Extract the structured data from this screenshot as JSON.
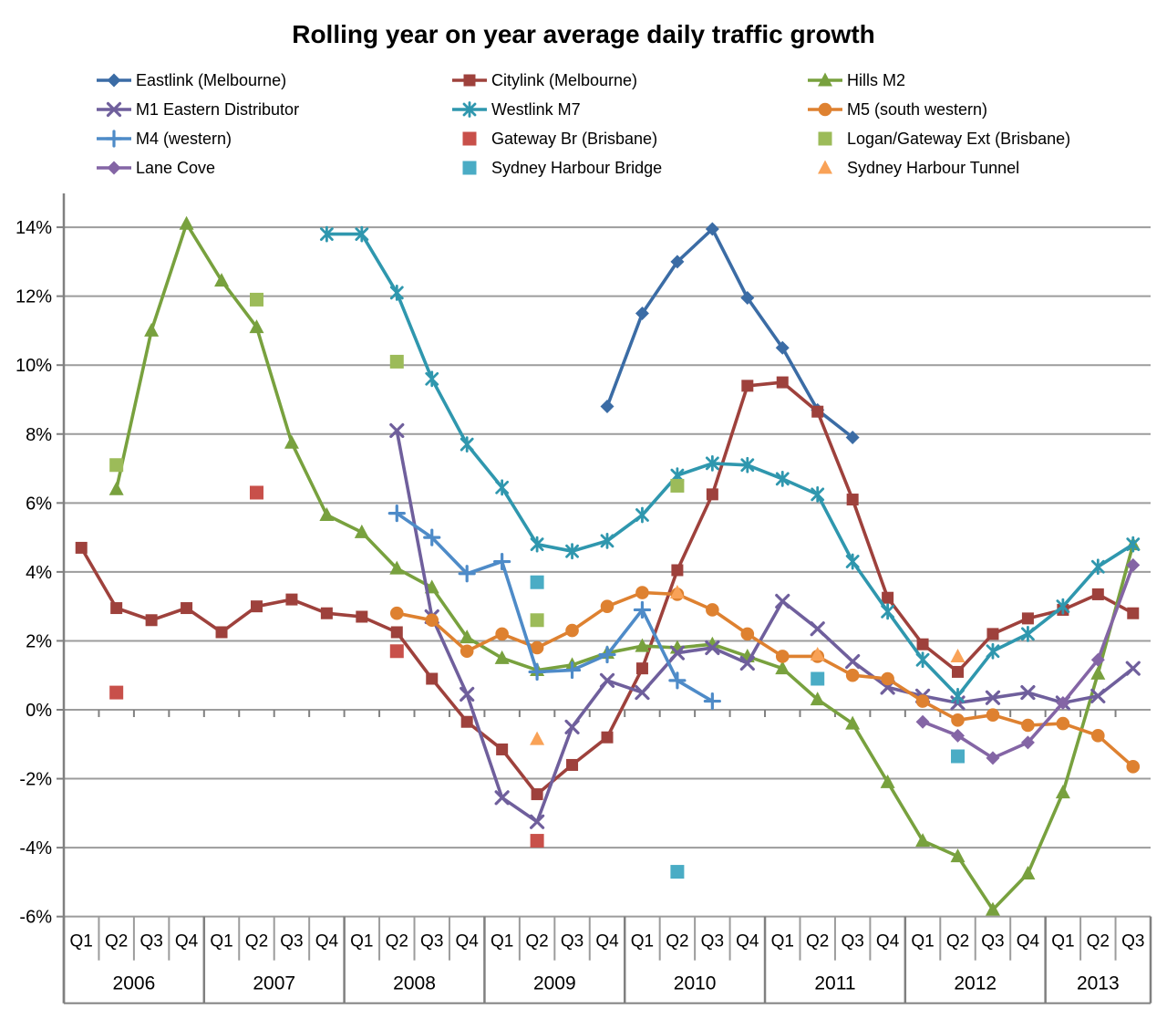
{
  "title": "Rolling year on year average daily traffic growth",
  "chart_data": {
    "type": "line",
    "title": "Rolling year on year average daily traffic growth",
    "legend_position": "top",
    "y_axis": {
      "min": -6,
      "max": 14,
      "tick_step": 2,
      "tick_suffix": "%",
      "gridlines": true
    },
    "x_axis": {
      "quarter_labels": [
        "Q1",
        "Q2",
        "Q3",
        "Q4",
        "Q1",
        "Q2",
        "Q3",
        "Q4",
        "Q1",
        "Q2",
        "Q3",
        "Q4",
        "Q1",
        "Q2",
        "Q3",
        "Q4",
        "Q1",
        "Q2",
        "Q3",
        "Q4",
        "Q1",
        "Q2",
        "Q3",
        "Q4",
        "Q1",
        "Q2",
        "Q3",
        "Q4",
        "Q1",
        "Q2",
        "Q3"
      ],
      "year_groups": [
        {
          "label": "2006",
          "quarters": 4
        },
        {
          "label": "2007",
          "quarters": 4
        },
        {
          "label": "2008",
          "quarters": 4
        },
        {
          "label": "2009",
          "quarters": 4
        },
        {
          "label": "2010",
          "quarters": 4
        },
        {
          "label": "2011",
          "quarters": 4
        },
        {
          "label": "2012",
          "quarters": 4
        },
        {
          "label": "2013",
          "quarters": 3
        }
      ]
    },
    "series": [
      {
        "name": "Eastlink (Melbourne)",
        "type": "line",
        "marker": "diamond",
        "color": "#3B6CA5",
        "values": [
          null,
          null,
          null,
          null,
          null,
          null,
          null,
          null,
          null,
          null,
          null,
          null,
          null,
          null,
          null,
          8.8,
          11.5,
          13.0,
          13.95,
          11.95,
          10.5,
          8.7,
          7.9,
          null,
          null,
          null,
          null,
          null,
          null,
          null,
          null
        ]
      },
      {
        "name": "Citylink (Melbourne)",
        "type": "line",
        "marker": "square",
        "color": "#9E413C",
        "values": [
          4.7,
          2.95,
          2.6,
          2.95,
          2.25,
          3.0,
          3.2,
          2.8,
          2.7,
          2.25,
          0.9,
          -0.35,
          -1.15,
          -2.45,
          -1.6,
          -0.8,
          1.2,
          4.05,
          6.25,
          9.4,
          9.5,
          8.65,
          6.1,
          3.25,
          1.9,
          1.1,
          2.2,
          2.65,
          2.9,
          3.35,
          2.8
        ]
      },
      {
        "name": "Hills M2",
        "type": "line",
        "marker": "triangle",
        "color": "#78A13E",
        "values": [
          null,
          6.4,
          11.0,
          14.1,
          12.45,
          11.1,
          7.75,
          5.65,
          5.15,
          4.1,
          3.55,
          2.1,
          1.5,
          1.15,
          1.3,
          1.65,
          1.85,
          1.8,
          1.9,
          1.55,
          1.2,
          0.3,
          -0.4,
          -2.1,
          -3.8,
          -4.25,
          -5.8,
          -4.75,
          -2.4,
          1.05,
          4.8
        ]
      },
      {
        "name": "M1 Eastern Distributor",
        "type": "line",
        "marker": "x",
        "color": "#6F5F9C",
        "values": [
          null,
          null,
          null,
          null,
          null,
          null,
          null,
          null,
          null,
          8.1,
          2.7,
          0.45,
          -2.55,
          -3.25,
          -0.5,
          0.85,
          0.5,
          1.65,
          1.8,
          1.35,
          3.15,
          2.35,
          1.4,
          0.65,
          0.4,
          0.2,
          0.35,
          0.5,
          0.2,
          0.4,
          1.2
        ]
      },
      {
        "name": "Westlink M7",
        "type": "line",
        "marker": "asterisk",
        "color": "#2F97AE",
        "values": [
          null,
          null,
          null,
          null,
          null,
          null,
          null,
          13.8,
          13.8,
          12.1,
          9.6,
          7.7,
          6.45,
          4.8,
          4.6,
          4.9,
          5.65,
          6.8,
          7.15,
          7.1,
          6.7,
          6.25,
          4.3,
          2.85,
          1.45,
          0.4,
          1.7,
          2.2,
          3.0,
          4.15,
          4.8
        ]
      },
      {
        "name": "M5 (south western)",
        "type": "line",
        "marker": "circle",
        "color": "#DE8130",
        "values": [
          null,
          null,
          null,
          null,
          null,
          null,
          null,
          null,
          null,
          2.8,
          2.6,
          1.7,
          2.2,
          1.8,
          2.3,
          3.0,
          3.4,
          3.35,
          2.9,
          2.2,
          1.55,
          1.55,
          1.0,
          0.9,
          0.25,
          -0.3,
          -0.15,
          -0.45,
          -0.4,
          -0.75,
          -1.65
        ]
      },
      {
        "name": "M4 (western)",
        "type": "line",
        "marker": "plus",
        "color": "#4E8BC8",
        "values": [
          null,
          null,
          null,
          null,
          null,
          null,
          null,
          null,
          null,
          5.7,
          5.0,
          3.95,
          4.3,
          1.1,
          1.15,
          1.6,
          2.9,
          0.85,
          0.25,
          null,
          null,
          null,
          null,
          null,
          null,
          null,
          null,
          null,
          null,
          null,
          null
        ]
      },
      {
        "name": "Gateway Br (Brisbane)",
        "type": "scatter",
        "marker": "square",
        "color": "#C8504A",
        "values": [
          null,
          0.5,
          null,
          null,
          null,
          6.3,
          null,
          null,
          null,
          1.7,
          null,
          null,
          null,
          -3.8,
          null,
          null,
          null,
          null,
          null,
          null,
          null,
          null,
          null,
          null,
          null,
          null,
          null,
          null,
          null,
          null,
          null
        ]
      },
      {
        "name": "Logan/Gateway Ext (Brisbane)",
        "type": "scatter",
        "marker": "square",
        "color": "#9CBB59",
        "values": [
          null,
          7.1,
          null,
          null,
          null,
          11.9,
          null,
          null,
          null,
          10.1,
          null,
          null,
          null,
          2.6,
          null,
          null,
          null,
          6.5,
          null,
          null,
          null,
          null,
          null,
          null,
          null,
          null,
          null,
          null,
          null,
          null,
          null
        ]
      },
      {
        "name": "Lane Cove",
        "type": "line",
        "marker": "diamond",
        "color": "#8465A5",
        "values": [
          null,
          null,
          null,
          null,
          null,
          null,
          null,
          null,
          null,
          null,
          null,
          null,
          null,
          null,
          null,
          null,
          null,
          null,
          null,
          null,
          null,
          null,
          null,
          null,
          -0.35,
          -0.75,
          -1.4,
          -0.95,
          0.2,
          1.45,
          4.2
        ]
      },
      {
        "name": "Sydney Harbour Bridge",
        "type": "scatter",
        "marker": "square",
        "color": "#4AACC5",
        "values": [
          null,
          null,
          null,
          null,
          null,
          null,
          null,
          null,
          null,
          null,
          null,
          null,
          null,
          3.7,
          null,
          null,
          null,
          -4.7,
          null,
          null,
          null,
          0.9,
          null,
          null,
          null,
          -1.35,
          null,
          null,
          null,
          null,
          null
        ]
      },
      {
        "name": "Sydney Harbour Tunnel",
        "type": "scatter",
        "marker": "triangle",
        "color": "#F9A257",
        "values": [
          null,
          null,
          null,
          null,
          null,
          null,
          null,
          null,
          null,
          null,
          null,
          null,
          null,
          -0.85,
          null,
          null,
          null,
          3.4,
          null,
          null,
          null,
          1.6,
          null,
          null,
          null,
          1.55,
          null,
          null,
          null,
          null,
          null
        ]
      }
    ]
  }
}
